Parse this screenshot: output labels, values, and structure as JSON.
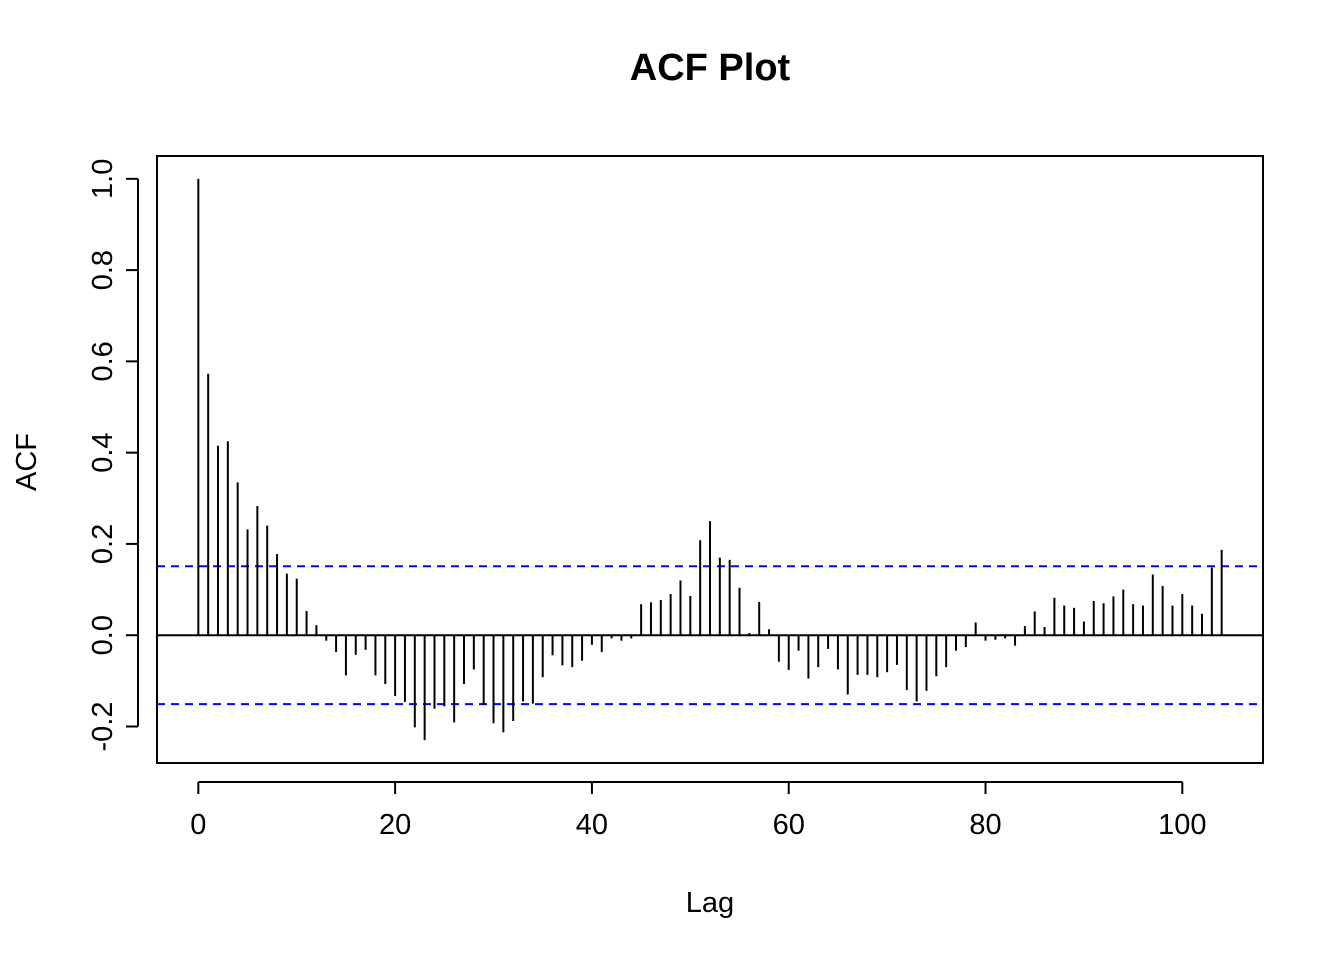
{
  "chart_data": {
    "type": "bar",
    "title": "ACF Plot",
    "xlabel": "Lag",
    "ylabel": "ACF",
    "xlim": [
      -4.2,
      108.2
    ],
    "ylim": [
      -0.28,
      1.05
    ],
    "x_ticks": [
      0,
      20,
      40,
      60,
      80,
      100
    ],
    "x_tick_labels": [
      "0",
      "20",
      "40",
      "60",
      "80",
      "100"
    ],
    "y_ticks": [
      -0.2,
      0.0,
      0.2,
      0.4,
      0.6,
      0.8,
      1.0
    ],
    "y_tick_labels": [
      "-0.2",
      "0.0",
      "0.2",
      "0.4",
      "0.6",
      "0.8",
      "1.0"
    ],
    "confidence_bound": 0.151,
    "confidence_line_color": "#0000ff",
    "bar_color": "#000000",
    "grid": false,
    "lags": [
      0,
      1,
      2,
      3,
      4,
      5,
      6,
      7,
      8,
      9,
      10,
      11,
      12,
      13,
      14,
      15,
      16,
      17,
      18,
      19,
      20,
      21,
      22,
      23,
      24,
      25,
      26,
      27,
      28,
      29,
      30,
      31,
      32,
      33,
      34,
      35,
      36,
      37,
      38,
      39,
      40,
      41,
      42,
      43,
      44,
      45,
      46,
      47,
      48,
      49,
      50,
      51,
      52,
      53,
      54,
      55,
      56,
      57,
      58,
      59,
      60,
      61,
      62,
      63,
      64,
      65,
      66,
      67,
      68,
      69,
      70,
      71,
      72,
      73,
      74,
      75,
      76,
      77,
      78,
      79,
      80,
      81,
      82,
      83,
      84,
      85,
      86,
      87,
      88,
      89,
      90,
      91,
      92,
      93,
      94,
      95,
      96,
      97,
      98,
      99,
      100,
      101,
      102,
      103,
      104
    ],
    "values": [
      1.0,
      0.573,
      0.415,
      0.425,
      0.335,
      0.232,
      0.283,
      0.24,
      0.178,
      0.135,
      0.124,
      0.053,
      0.022,
      -0.012,
      -0.037,
      -0.088,
      -0.043,
      -0.032,
      -0.088,
      -0.107,
      -0.133,
      -0.146,
      -0.202,
      -0.23,
      -0.161,
      -0.156,
      -0.191,
      -0.107,
      -0.075,
      -0.153,
      -0.193,
      -0.213,
      -0.188,
      -0.145,
      -0.15,
      -0.092,
      -0.044,
      -0.066,
      -0.07,
      -0.056,
      -0.021,
      -0.037,
      -0.007,
      -0.012,
      -0.007,
      0.068,
      0.072,
      0.077,
      0.09,
      0.12,
      0.086,
      0.208,
      0.25,
      0.17,
      0.165,
      0.104,
      0.005,
      0.073,
      0.013,
      -0.058,
      -0.076,
      -0.034,
      -0.095,
      -0.07,
      -0.03,
      -0.075,
      -0.13,
      -0.087,
      -0.087,
      -0.092,
      -0.081,
      -0.065,
      -0.12,
      -0.145,
      -0.122,
      -0.09,
      -0.07,
      -0.034,
      -0.026,
      0.028,
      -0.012,
      -0.01,
      -0.007,
      -0.023,
      0.02,
      0.052,
      0.018,
      0.082,
      0.065,
      0.06,
      0.03,
      0.075,
      0.07,
      0.085,
      0.1,
      0.068,
      0.065,
      0.133,
      0.108,
      0.065,
      0.09,
      0.065,
      0.047,
      0.148,
      0.187
    ]
  }
}
